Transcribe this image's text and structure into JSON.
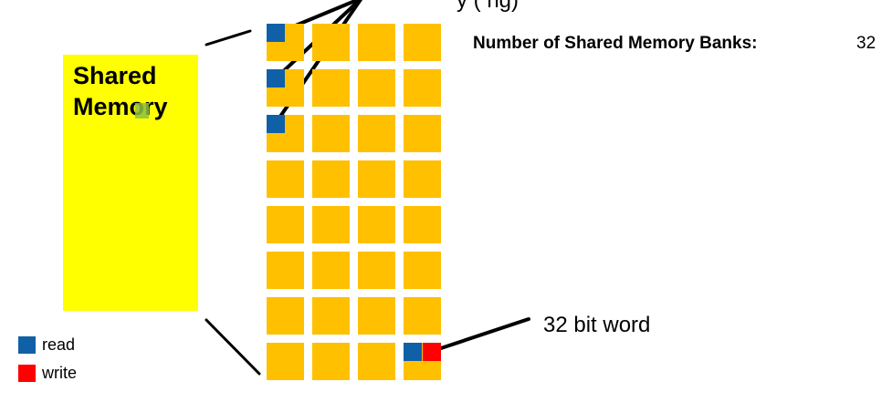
{
  "shared_memory": {
    "title": "Shared\nMemory",
    "fill_color": "#FFFF00",
    "marker_color": "#8FBF3F"
  },
  "top_caption": "y (    ng)",
  "banks": {
    "label": "Number of Shared Memory Banks:",
    "count": "32",
    "grid_rows": 8,
    "grid_columns": 4,
    "cell_color": "#FFC000"
  },
  "word": {
    "label": "32 bit word"
  },
  "accesses": [
    {
      "row": 0,
      "col": 0,
      "type": "read",
      "part": "top-left"
    },
    {
      "row": 1,
      "col": 0,
      "type": "read",
      "part": "top-left"
    },
    {
      "row": 2,
      "col": 0,
      "type": "read",
      "part": "top-left"
    },
    {
      "row": 7,
      "col": 3,
      "type": "read",
      "part": "top-left-half"
    },
    {
      "row": 7,
      "col": 3,
      "type": "write",
      "part": "top-right-half"
    }
  ],
  "legend": {
    "items": [
      {
        "label": "read",
        "color": "#1060A8"
      },
      {
        "label": "write",
        "color": "#FF0000"
      }
    ]
  },
  "line_color": "#000000"
}
